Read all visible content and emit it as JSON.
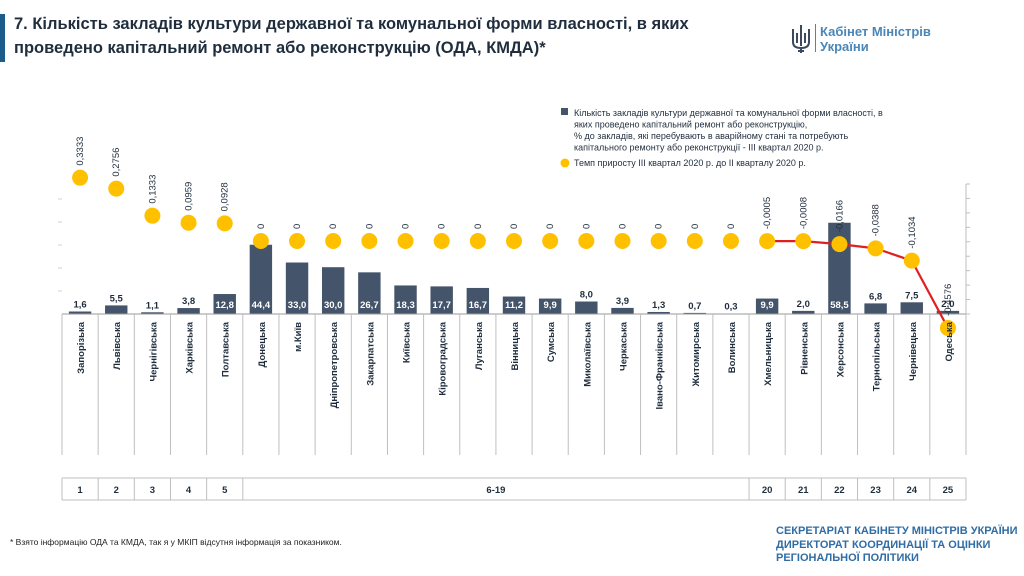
{
  "header": {
    "title": "7. Кількість закладів культури державної та комунальної форми власності, в яких проведено капітальний ремонт або реконструкцію (ОДА, КМДА)*",
    "logo_line1": "Кабінет Міністрів",
    "logo_line2": "України",
    "logo_icon": "trident-emblem-icon",
    "accent_color": "#1b5c8a"
  },
  "footer": {
    "footnote": "* Взято інформацію ОДА та КМДА, так я у МКІП відсутня інформація за показником.",
    "secretariat": [
      "СЕКРЕТАРІАТ КАБІНЕТУ МІНІСТРІВ УКРАЇНИ",
      "ДИРЕКТОРАТ КООРДИНАЦІЇ ТА ОЦІНКИ",
      "РЕГІОНАЛЬНОЇ ПОЛІТИКИ"
    ]
  },
  "chart_data": {
    "type": "bar",
    "legend_position": "top-right",
    "categories": [
      "Запорізька",
      "Львівська",
      "Чернігівська",
      "Харківська",
      "Полтавська",
      "Донецька",
      "м.Київ",
      "Дніпропетровська",
      "Закарпатська",
      "Київська",
      "Кіровоградська",
      "Луганська",
      "Вінницька",
      "Сумська",
      "Миколаївська",
      "Черкаська",
      "Івано-Франківська",
      "Житомирська",
      "Волинська",
      "Хмельницька",
      "Рівненська",
      "Херсонська",
      "Тернопільська",
      "Чернівецька",
      "Одеська"
    ],
    "bar_labels": [
      "1,6",
      "5,5",
      "1,1",
      "3,8",
      "12,8",
      "44,4",
      "33,0",
      "30,0",
      "26,7",
      "18,3",
      "17,7",
      "16,7",
      "11,2",
      "9,9",
      "8,0",
      "3,9",
      "1,3",
      "0,7",
      "0,3",
      "9,9",
      "2,0",
      "58,5",
      "6,8",
      "7,5",
      "2,0"
    ],
    "dot_labels": [
      "0,3333",
      "0,2756",
      "0,1333",
      "0,0959",
      "0,0928",
      "0",
      "0",
      "0",
      "0",
      "0",
      "0",
      "0",
      "0",
      "0",
      "0",
      "0",
      "0",
      "0",
      "0",
      "-0,0005",
      "-0,0008",
      "-0,0166",
      "-0,0388",
      "-0,1034",
      "-0,4576"
    ],
    "rank_labels": [
      "1",
      "2",
      "3",
      "4",
      "5",
      "6-19",
      "20",
      "21",
      "22",
      "23",
      "24",
      "25"
    ],
    "series": [
      {
        "name": "Кількість закладів культури державної та комунальної форми власності, в яких проведено капітальний ремонт або реконструкцію, % до закладів, які перебувають в аварійному стані та потребують капітального ремонту або реконструкції - ІІІ квартал 2020 р.",
        "legend_lines": [
          "Кількість закладів культури державної та комунальної форми власності, в",
          "яких проведено капітальний ремонт або реконструкцію,",
          "% до закладів, які перебувають в аварійному стані та потребують",
          "капітального ремонту або реконструкції - ІІІ квартал 2020 р."
        ],
        "color": "#44546a",
        "values": [
          1.6,
          5.5,
          1.1,
          3.8,
          12.8,
          44.4,
          33.0,
          30.0,
          26.7,
          18.3,
          17.7,
          16.7,
          11.2,
          9.9,
          8.0,
          3.9,
          1.3,
          0.7,
          0.3,
          9.9,
          2.0,
          58.5,
          6.8,
          7.5,
          2.0
        ]
      },
      {
        "name": "Темп приросту ІІІ квартал 2020 р. до ІІ кварталу 2020 р.",
        "legend_lines": [
          "Темп приросту ІІІ квартал 2020 р. до ІІ кварталу 2020 р."
        ],
        "color": "#ffc000",
        "negative_line_color": "#e02020",
        "values": [
          0.3333,
          0.2756,
          0.1333,
          0.0959,
          0.0928,
          0,
          0,
          0,
          0,
          0,
          0,
          0,
          0,
          0,
          0,
          0,
          0,
          0,
          0,
          -0.0005,
          -0.0008,
          -0.0166,
          -0.0388,
          -0.1034,
          -0.4576
        ]
      }
    ]
  }
}
